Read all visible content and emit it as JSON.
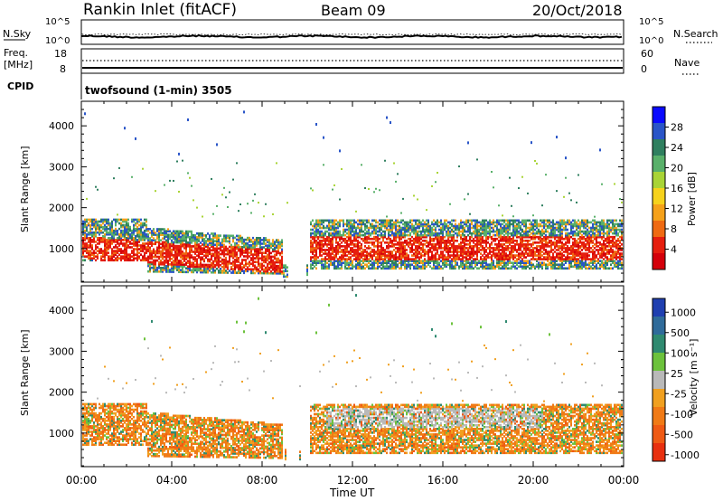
{
  "header": {
    "station": "Rankin Inlet (fitACF)",
    "beam": "Beam 09",
    "date": "20/Oct/2018"
  },
  "top_panel": {
    "left_label": "N.Sky",
    "left_ticks": [
      "10^5",
      "10^0"
    ],
    "right_ticks": [
      "10^5",
      "10^0"
    ],
    "right_label": "N.Search",
    "right_legend_style": "dotted"
  },
  "freq_panel": {
    "left_label_1": "Freq.",
    "left_label_2": "[MHz]",
    "left_ticks": [
      "18",
      "8"
    ],
    "right_ticks": [
      "60",
      "0"
    ],
    "right_label": "Nave",
    "right_legend_style": "dotted"
  },
  "cpid_panel": {
    "label": "CPID",
    "mode_text": "twofsound (1-min) 3505"
  },
  "chart_data": [
    {
      "type": "heatmap",
      "name": "Power",
      "ylabel": "Slant Range [km]",
      "yticks": [
        "1000",
        "2000",
        "3000",
        "4000"
      ],
      "ylim": [
        180,
        4600
      ],
      "colorbar_label": "Power [dB]",
      "colorbar_ticks": [
        "4",
        "8",
        "12",
        "16",
        "20",
        "24",
        "28"
      ],
      "colorbar_colors": [
        "#0a0aff",
        "#2a55c8",
        "#2f7f5f",
        "#59b06a",
        "#a9d436",
        "#f6d21c",
        "#f5a11a",
        "#ef6a12",
        "#e61e0e",
        "#d4000a"
      ]
    },
    {
      "type": "heatmap",
      "name": "Velocity",
      "ylabel": "Slant Range [km]",
      "yticks": [
        "1000",
        "2000",
        "3000",
        "4000"
      ],
      "ylim": [
        180,
        4600
      ],
      "colorbar_label": "Velocity [m s⁻¹]",
      "colorbar_ticks": [
        "1000",
        "500",
        "100",
        "25",
        "-25",
        "-100",
        "-500",
        "-1000"
      ],
      "colorbar_colors": [
        "#1f3fb0",
        "#2f6b9a",
        "#2f8a70",
        "#6cc23c",
        "#b9b9b9",
        "#f0a020",
        "#f07a16",
        "#ef5a14",
        "#e8300f"
      ]
    }
  ],
  "x_axis": {
    "label": "Time UT",
    "ticks": [
      "00:00",
      "04:00",
      "08:00",
      "12:00",
      "16:00",
      "20:00",
      "00:00"
    ]
  },
  "colors": {
    "text": "#000000",
    "axis": "#000000"
  }
}
